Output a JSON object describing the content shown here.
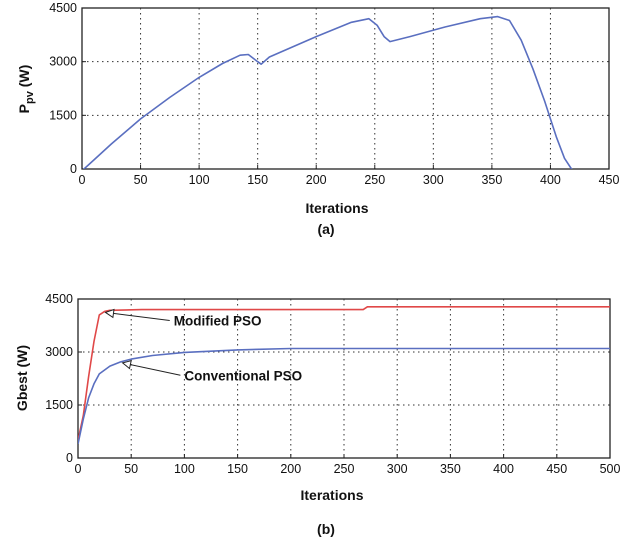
{
  "chart_data": [
    {
      "type": "line",
      "caption": "(a)",
      "xlabel": "Iterations",
      "ylabel_main": "P",
      "ylabel_sub": "pv",
      "ylabel_unit": "(W)",
      "xlim": [
        0,
        450
      ],
      "ylim": [
        0,
        4500
      ],
      "xticks": [
        0,
        50,
        100,
        150,
        200,
        250,
        300,
        350,
        400,
        450
      ],
      "yticks": [
        0,
        1500,
        3000,
        4500
      ],
      "grid": true,
      "series": [
        {
          "color": "#5a6fc0",
          "x": [
            0,
            10,
            25,
            50,
            75,
            100,
            120,
            135,
            142,
            150,
            153,
            160,
            200,
            230,
            245,
            252,
            258,
            263,
            280,
            310,
            340,
            355,
            365,
            375,
            385,
            395,
            405,
            412,
            418,
            420
          ],
          "y": [
            -50,
            250,
            700,
            1400,
            2000,
            2560,
            2950,
            3180,
            3200,
            3000,
            2930,
            3130,
            3700,
            4100,
            4200,
            4020,
            3700,
            3560,
            3700,
            3970,
            4200,
            4260,
            4150,
            3600,
            2800,
            1900,
            900,
            300,
            0,
            -100
          ]
        }
      ]
    },
    {
      "type": "line",
      "caption": "(b)",
      "xlabel": "Iterations",
      "ylabel_main": "Gbest",
      "ylabel_unit": "(W)",
      "xlim": [
        0,
        500
      ],
      "ylim": [
        0,
        4500
      ],
      "xticks": [
        0,
        50,
        100,
        150,
        200,
        250,
        300,
        350,
        400,
        450,
        500
      ],
      "yticks": [
        0,
        1500,
        3000,
        4500
      ],
      "grid": true,
      "series": [
        {
          "name": "Modified PSO",
          "color": "#e04848",
          "x": [
            0,
            5,
            10,
            15,
            20,
            25,
            30,
            60,
            150,
            268,
            272,
            500
          ],
          "y": [
            500,
            1200,
            2300,
            3300,
            4050,
            4150,
            4180,
            4200,
            4200,
            4200,
            4280,
            4280
          ]
        },
        {
          "name": "Conventional PSO",
          "color": "#5a6fc0",
          "x": [
            0,
            5,
            10,
            15,
            20,
            30,
            40,
            50,
            70,
            100,
            150,
            200,
            300,
            500
          ],
          "y": [
            400,
            1100,
            1700,
            2100,
            2380,
            2600,
            2720,
            2800,
            2900,
            2990,
            3060,
            3100,
            3100,
            3100
          ]
        }
      ],
      "annotations": [
        {
          "label": "Modified PSO",
          "point": [
            24,
            4150
          ],
          "text_at": [
            90,
            3750
          ]
        },
        {
          "label": "Conventional PSO",
          "point": [
            40,
            2720
          ],
          "text_at": [
            100,
            2200
          ]
        }
      ]
    }
  ]
}
